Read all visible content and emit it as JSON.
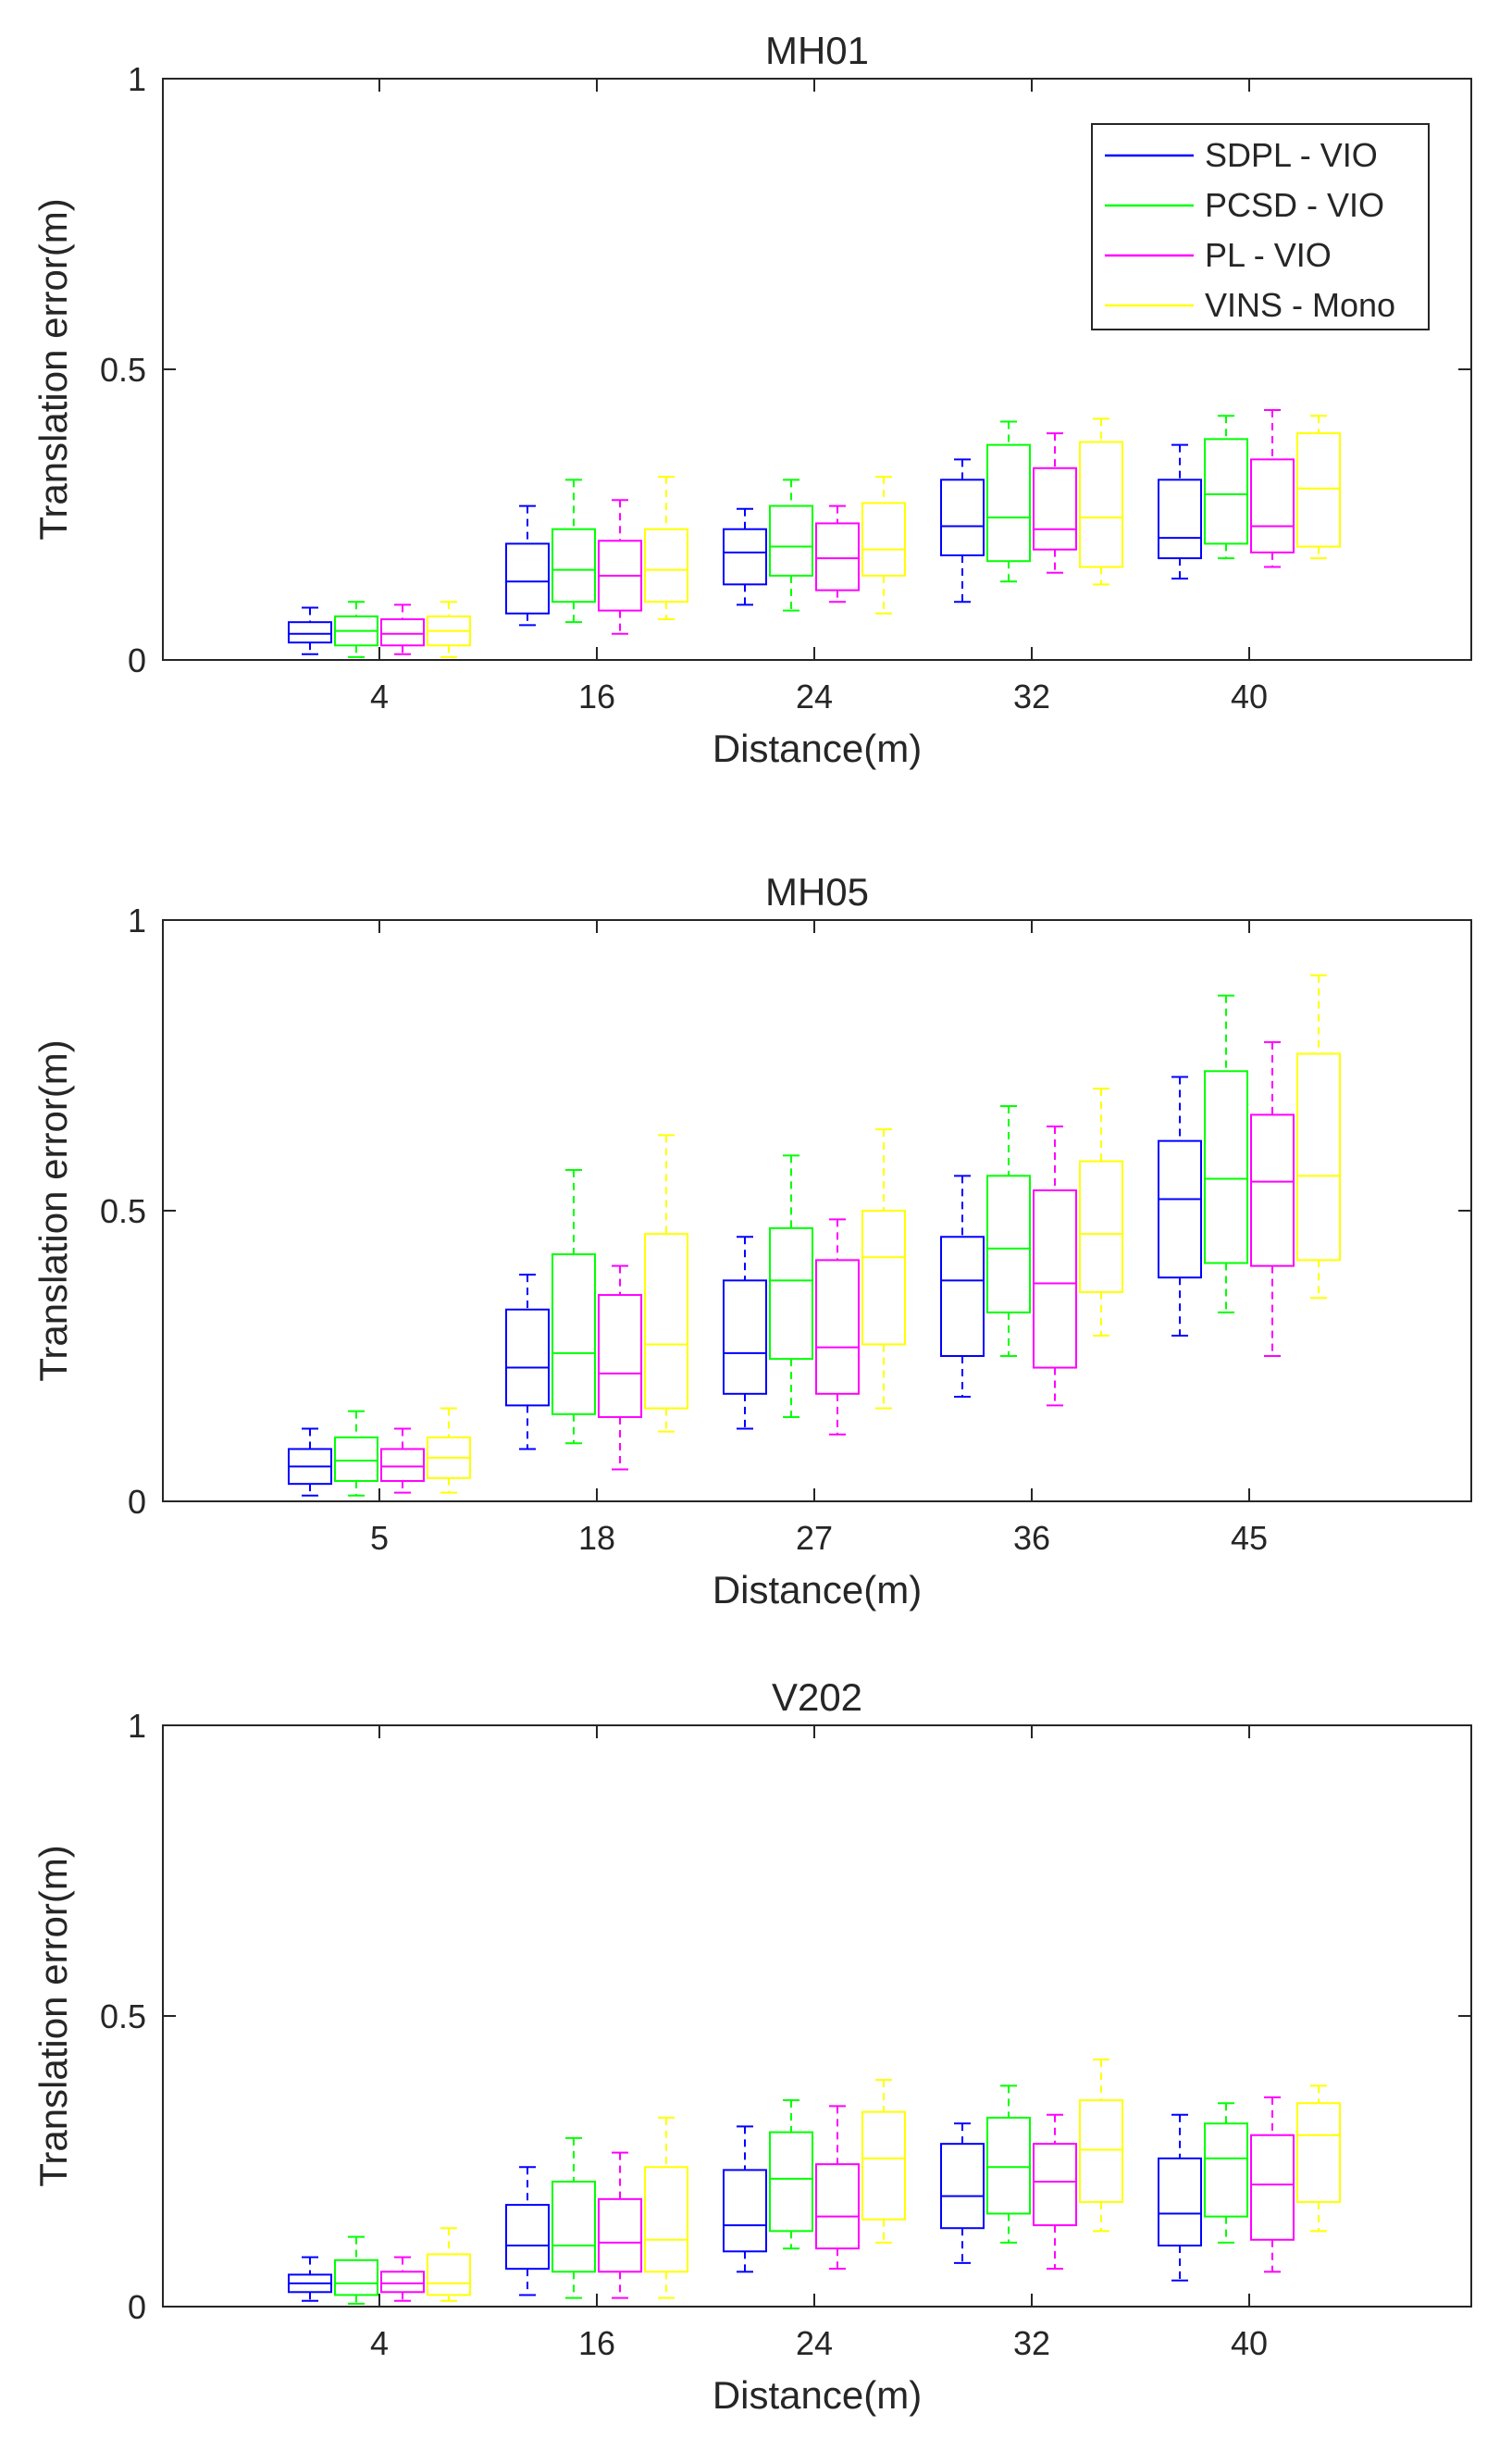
{
  "series_meta": [
    {
      "name": "SDPL - VIO",
      "color": "#0000ff"
    },
    {
      "name": "PCSD - VIO",
      "color": "#00ff00"
    },
    {
      "name": "PL - VIO",
      "color": "#ff00ff"
    },
    {
      "name": "VINS - Mono",
      "color": "#ffff00"
    }
  ],
  "chart_data": [
    {
      "type": "box",
      "title": "MH01",
      "xlabel": "Distance(m)",
      "ylabel": "Translation error(m)",
      "ylim": [
        0,
        1
      ],
      "yticks": [
        "0",
        "0.5",
        "1"
      ],
      "categories": [
        "4",
        "16",
        "24",
        "32",
        "40"
      ],
      "legend": "top-right",
      "series": [
        {
          "name": "SDPL - VIO",
          "boxes": [
            {
              "min": 0.01,
              "q1": 0.03,
              "median": 0.045,
              "q3": 0.065,
              "max": 0.09
            },
            {
              "min": 0.06,
              "q1": 0.08,
              "median": 0.135,
              "q3": 0.2,
              "max": 0.265
            },
            {
              "min": 0.095,
              "q1": 0.13,
              "median": 0.185,
              "q3": 0.225,
              "max": 0.26
            },
            {
              "min": 0.1,
              "q1": 0.18,
              "median": 0.23,
              "q3": 0.31,
              "max": 0.345
            },
            {
              "min": 0.14,
              "q1": 0.175,
              "median": 0.21,
              "q3": 0.31,
              "max": 0.37
            }
          ]
        },
        {
          "name": "PCSD - VIO",
          "boxes": [
            {
              "min": 0.005,
              "q1": 0.025,
              "median": 0.05,
              "q3": 0.075,
              "max": 0.1
            },
            {
              "min": 0.065,
              "q1": 0.1,
              "median": 0.155,
              "q3": 0.225,
              "max": 0.31
            },
            {
              "min": 0.085,
              "q1": 0.145,
              "median": 0.195,
              "q3": 0.265,
              "max": 0.31
            },
            {
              "min": 0.135,
              "q1": 0.17,
              "median": 0.245,
              "q3": 0.37,
              "max": 0.41
            },
            {
              "min": 0.175,
              "q1": 0.2,
              "median": 0.285,
              "q3": 0.38,
              "max": 0.42
            }
          ]
        },
        {
          "name": "PL - VIO",
          "boxes": [
            {
              "min": 0.01,
              "q1": 0.025,
              "median": 0.045,
              "q3": 0.07,
              "max": 0.095
            },
            {
              "min": 0.045,
              "q1": 0.085,
              "median": 0.145,
              "q3": 0.205,
              "max": 0.275
            },
            {
              "min": 0.1,
              "q1": 0.12,
              "median": 0.175,
              "q3": 0.235,
              "max": 0.265
            },
            {
              "min": 0.15,
              "q1": 0.19,
              "median": 0.225,
              "q3": 0.33,
              "max": 0.39
            },
            {
              "min": 0.16,
              "q1": 0.185,
              "median": 0.23,
              "q3": 0.345,
              "max": 0.43
            }
          ]
        },
        {
          "name": "VINS - Mono",
          "boxes": [
            {
              "min": 0.005,
              "q1": 0.025,
              "median": 0.05,
              "q3": 0.075,
              "max": 0.1
            },
            {
              "min": 0.07,
              "q1": 0.1,
              "median": 0.155,
              "q3": 0.225,
              "max": 0.315
            },
            {
              "min": 0.08,
              "q1": 0.145,
              "median": 0.19,
              "q3": 0.27,
              "max": 0.315
            },
            {
              "min": 0.13,
              "q1": 0.16,
              "median": 0.245,
              "q3": 0.375,
              "max": 0.415
            },
            {
              "min": 0.175,
              "q1": 0.195,
              "median": 0.295,
              "q3": 0.39,
              "max": 0.42
            }
          ]
        }
      ]
    },
    {
      "type": "box",
      "title": "MH05",
      "xlabel": "Distance(m)",
      "ylabel": "Translation error(m)",
      "ylim": [
        0,
        1
      ],
      "yticks": [
        "0",
        "0.5",
        "1"
      ],
      "categories": [
        "5",
        "18",
        "27",
        "36",
        "45"
      ],
      "series": [
        {
          "name": "SDPL - VIO",
          "boxes": [
            {
              "min": 0.01,
              "q1": 0.03,
              "median": 0.06,
              "q3": 0.09,
              "max": 0.125
            },
            {
              "min": 0.09,
              "q1": 0.165,
              "median": 0.23,
              "q3": 0.33,
              "max": 0.39
            },
            {
              "min": 0.125,
              "q1": 0.185,
              "median": 0.255,
              "q3": 0.38,
              "max": 0.455
            },
            {
              "min": 0.18,
              "q1": 0.25,
              "median": 0.38,
              "q3": 0.455,
              "max": 0.56
            },
            {
              "min": 0.285,
              "q1": 0.385,
              "median": 0.52,
              "q3": 0.62,
              "max": 0.73
            }
          ]
        },
        {
          "name": "PCSD - VIO",
          "boxes": [
            {
              "min": 0.01,
              "q1": 0.035,
              "median": 0.07,
              "q3": 0.11,
              "max": 0.155
            },
            {
              "min": 0.1,
              "q1": 0.15,
              "median": 0.255,
              "q3": 0.425,
              "max": 0.57
            },
            {
              "min": 0.145,
              "q1": 0.245,
              "median": 0.38,
              "q3": 0.47,
              "max": 0.595
            },
            {
              "min": 0.25,
              "q1": 0.325,
              "median": 0.435,
              "q3": 0.56,
              "max": 0.68
            },
            {
              "min": 0.325,
              "q1": 0.41,
              "median": 0.555,
              "q3": 0.74,
              "max": 0.87
            }
          ]
        },
        {
          "name": "PL - VIO",
          "boxes": [
            {
              "min": 0.015,
              "q1": 0.035,
              "median": 0.06,
              "q3": 0.09,
              "max": 0.125
            },
            {
              "min": 0.055,
              "q1": 0.145,
              "median": 0.22,
              "q3": 0.355,
              "max": 0.405
            },
            {
              "min": 0.115,
              "q1": 0.185,
              "median": 0.265,
              "q3": 0.415,
              "max": 0.485
            },
            {
              "min": 0.165,
              "q1": 0.23,
              "median": 0.375,
              "q3": 0.535,
              "max": 0.645
            },
            {
              "min": 0.25,
              "q1": 0.405,
              "median": 0.55,
              "q3": 0.665,
              "max": 0.79
            }
          ]
        },
        {
          "name": "VINS - Mono",
          "boxes": [
            {
              "min": 0.015,
              "q1": 0.04,
              "median": 0.075,
              "q3": 0.11,
              "max": 0.16
            },
            {
              "min": 0.12,
              "q1": 0.16,
              "median": 0.27,
              "q3": 0.46,
              "max": 0.63
            },
            {
              "min": 0.16,
              "q1": 0.27,
              "median": 0.42,
              "q3": 0.5,
              "max": 0.64
            },
            {
              "min": 0.285,
              "q1": 0.36,
              "median": 0.46,
              "q3": 0.585,
              "max": 0.71
            },
            {
              "min": 0.35,
              "q1": 0.415,
              "median": 0.56,
              "q3": 0.77,
              "max": 0.905
            }
          ]
        }
      ]
    },
    {
      "type": "box",
      "title": "V202",
      "xlabel": "Distance(m)",
      "ylabel": "Translation error(m)",
      "ylim": [
        0,
        1
      ],
      "yticks": [
        "0",
        "0.5",
        "1"
      ],
      "categories": [
        "4",
        "16",
        "24",
        "32",
        "40"
      ],
      "series": [
        {
          "name": "SDPL - VIO",
          "boxes": [
            {
              "min": 0.01,
              "q1": 0.025,
              "median": 0.04,
              "q3": 0.055,
              "max": 0.085
            },
            {
              "min": 0.02,
              "q1": 0.065,
              "median": 0.105,
              "q3": 0.175,
              "max": 0.24
            },
            {
              "min": 0.06,
              "q1": 0.095,
              "median": 0.14,
              "q3": 0.235,
              "max": 0.31
            },
            {
              "min": 0.075,
              "q1": 0.135,
              "median": 0.19,
              "q3": 0.28,
              "max": 0.315
            },
            {
              "min": 0.045,
              "q1": 0.105,
              "median": 0.16,
              "q3": 0.255,
              "max": 0.33
            }
          ]
        },
        {
          "name": "PCSD - VIO",
          "boxes": [
            {
              "min": 0.005,
              "q1": 0.02,
              "median": 0.04,
              "q3": 0.08,
              "max": 0.12
            },
            {
              "min": 0.015,
              "q1": 0.06,
              "median": 0.105,
              "q3": 0.215,
              "max": 0.29
            },
            {
              "min": 0.1,
              "q1": 0.13,
              "median": 0.22,
              "q3": 0.3,
              "max": 0.355
            },
            {
              "min": 0.11,
              "q1": 0.16,
              "median": 0.24,
              "q3": 0.325,
              "max": 0.38
            },
            {
              "min": 0.11,
              "q1": 0.155,
              "median": 0.255,
              "q3": 0.315,
              "max": 0.35
            }
          ]
        },
        {
          "name": "PL - VIO",
          "boxes": [
            {
              "min": 0.01,
              "q1": 0.025,
              "median": 0.04,
              "q3": 0.06,
              "max": 0.085
            },
            {
              "min": 0.015,
              "q1": 0.06,
              "median": 0.11,
              "q3": 0.185,
              "max": 0.265
            },
            {
              "min": 0.065,
              "q1": 0.1,
              "median": 0.155,
              "q3": 0.245,
              "max": 0.345
            },
            {
              "min": 0.065,
              "q1": 0.14,
              "median": 0.215,
              "q3": 0.28,
              "max": 0.33
            },
            {
              "min": 0.06,
              "q1": 0.115,
              "median": 0.21,
              "q3": 0.295,
              "max": 0.36
            }
          ]
        },
        {
          "name": "VINS - Mono",
          "boxes": [
            {
              "min": 0.01,
              "q1": 0.02,
              "median": 0.04,
              "q3": 0.09,
              "max": 0.135
            },
            {
              "min": 0.015,
              "q1": 0.06,
              "median": 0.115,
              "q3": 0.24,
              "max": 0.325
            },
            {
              "min": 0.11,
              "q1": 0.15,
              "median": 0.255,
              "q3": 0.335,
              "max": 0.39
            },
            {
              "min": 0.13,
              "q1": 0.18,
              "median": 0.27,
              "q3": 0.355,
              "max": 0.425
            },
            {
              "min": 0.13,
              "q1": 0.18,
              "median": 0.295,
              "q3": 0.35,
              "max": 0.38
            }
          ]
        }
      ]
    }
  ]
}
